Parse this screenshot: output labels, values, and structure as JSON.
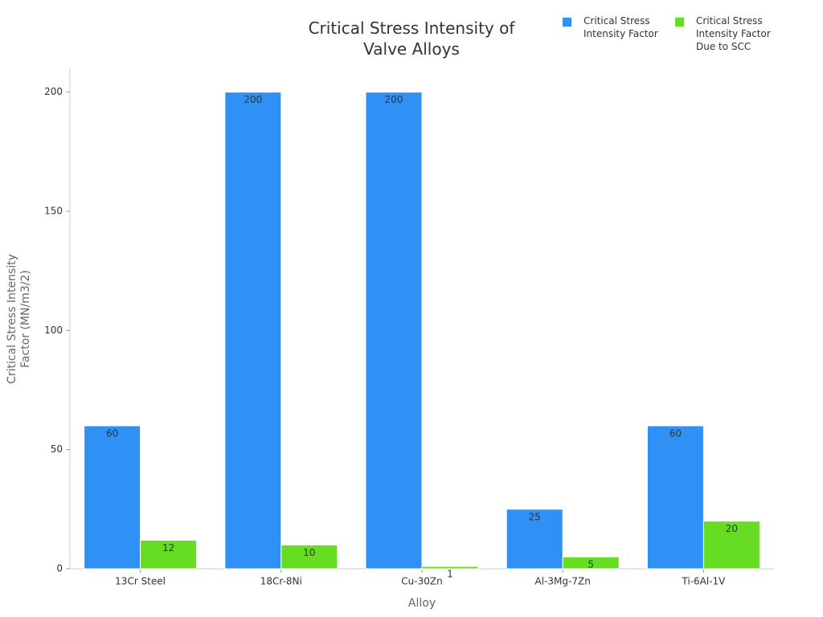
{
  "chart_data": {
    "type": "bar",
    "title": "Critical Stress Intensity of Valve Alloys",
    "x_label": "Alloy",
    "y_label": "Critical Stress Intensity Factor (MN/m3/2)",
    "categories": [
      "13Cr Steel",
      "18Cr-8Ni",
      "Cu-30Zn",
      "Al-3Mg-7Zn",
      "Ti-6Al-1V"
    ],
    "series": [
      {
        "name": "Critical Stress Intensity Factor",
        "color": "#2f91f5",
        "values": [
          60,
          200,
          200,
          25,
          60
        ]
      },
      {
        "name": "Critical Stress Intensity Factor Due to SCC",
        "color": "#66dd22",
        "values": [
          12,
          10,
          1,
          5,
          20
        ]
      }
    ],
    "ylim": [
      0,
      210
    ],
    "yticks": [
      0,
      50,
      100,
      150,
      200
    ],
    "legend": "top-right"
  }
}
